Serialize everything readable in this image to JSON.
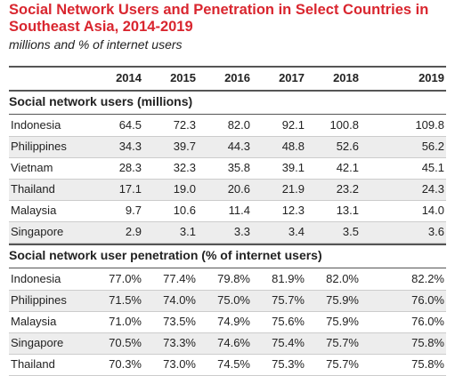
{
  "chart_data": {
    "type": "table",
    "title": "Social Network Users and Penetration in Select Countries in Southeast Asia, 2014-2019",
    "subtitle": "millions and % of internet users",
    "colors": {
      "title": "#d9262f",
      "rules": "#555555",
      "shade": "#ededed"
    },
    "years": [
      "2014",
      "2015",
      "2016",
      "2017",
      "2018",
      "2019"
    ],
    "sections": [
      {
        "heading": "Social network users (millions)",
        "rows": [
          {
            "country": "Indonesia",
            "values": [
              "64.5",
              "72.3",
              "82.0",
              "92.1",
              "100.8",
              "109.8"
            ]
          },
          {
            "country": "Philippines",
            "values": [
              "34.3",
              "39.7",
              "44.3",
              "48.8",
              "52.6",
              "56.2"
            ]
          },
          {
            "country": "Vietnam",
            "values": [
              "28.3",
              "32.3",
              "35.8",
              "39.1",
              "42.1",
              "45.1"
            ]
          },
          {
            "country": "Thailand",
            "values": [
              "17.1",
              "19.0",
              "20.6",
              "21.9",
              "23.2",
              "24.3"
            ]
          },
          {
            "country": "Malaysia",
            "values": [
              "9.7",
              "10.6",
              "11.4",
              "12.3",
              "13.1",
              "14.0"
            ]
          },
          {
            "country": "Singapore",
            "values": [
              "2.9",
              "3.1",
              "3.3",
              "3.4",
              "3.5",
              "3.6"
            ]
          }
        ]
      },
      {
        "heading": "Social network user penetration (% of internet users)",
        "rows": [
          {
            "country": "Indonesia",
            "values": [
              "77.0%",
              "77.4%",
              "79.8%",
              "81.9%",
              "82.0%",
              "82.2%"
            ]
          },
          {
            "country": "Philippines",
            "values": [
              "71.5%",
              "74.0%",
              "75.0%",
              "75.7%",
              "75.9%",
              "76.0%"
            ]
          },
          {
            "country": "Malaysia",
            "values": [
              "71.0%",
              "73.5%",
              "74.9%",
              "75.6%",
              "75.9%",
              "76.0%"
            ]
          },
          {
            "country": "Singapore",
            "values": [
              "70.5%",
              "73.3%",
              "74.6%",
              "75.4%",
              "75.7%",
              "75.8%"
            ]
          },
          {
            "country": "Thailand",
            "values": [
              "70.3%",
              "73.0%",
              "74.5%",
              "75.3%",
              "75.7%",
              "75.8%"
            ]
          }
        ]
      }
    ]
  }
}
